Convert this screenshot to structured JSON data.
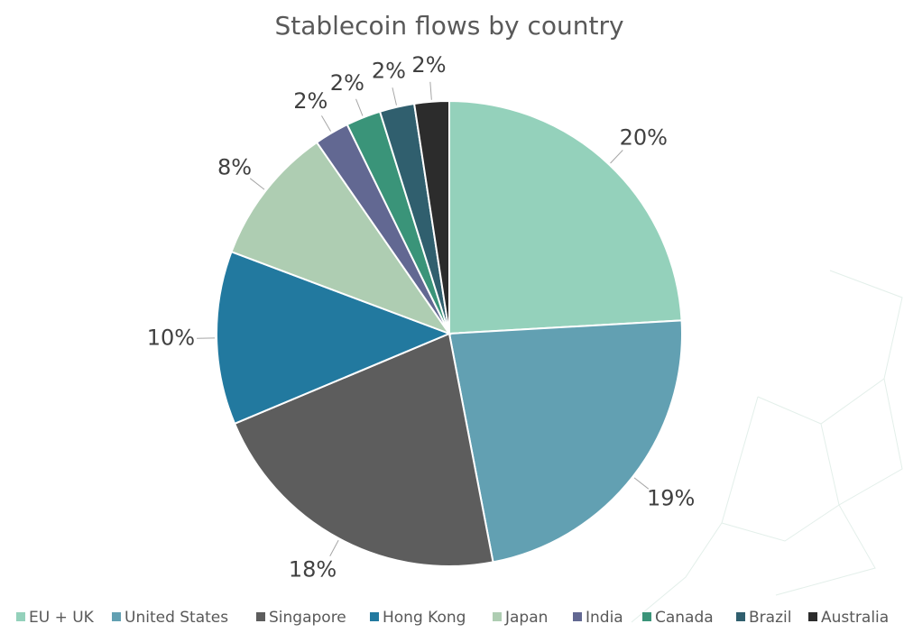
{
  "chart_data": {
    "type": "pie",
    "title": "Stablecoin flows by country",
    "categories": [
      "EU + UK",
      "United States",
      "Singapore",
      "Hong Kong",
      "Japan",
      "India",
      "Canada",
      "Brazil",
      "Australia"
    ],
    "values": [
      20,
      19,
      18,
      10,
      8,
      2,
      2,
      2,
      2
    ],
    "value_labels": [
      "20%",
      "19%",
      "18%",
      "10%",
      "8%",
      "2%",
      "2%",
      "2%",
      "2%"
    ],
    "colors": [
      "#94d1bb",
      "#62a0b2",
      "#5d5d5d",
      "#22799f",
      "#aecdb2",
      "#626892",
      "#3a9479",
      "#305f6e",
      "#2c2c2c"
    ],
    "legend": "bottom"
  }
}
